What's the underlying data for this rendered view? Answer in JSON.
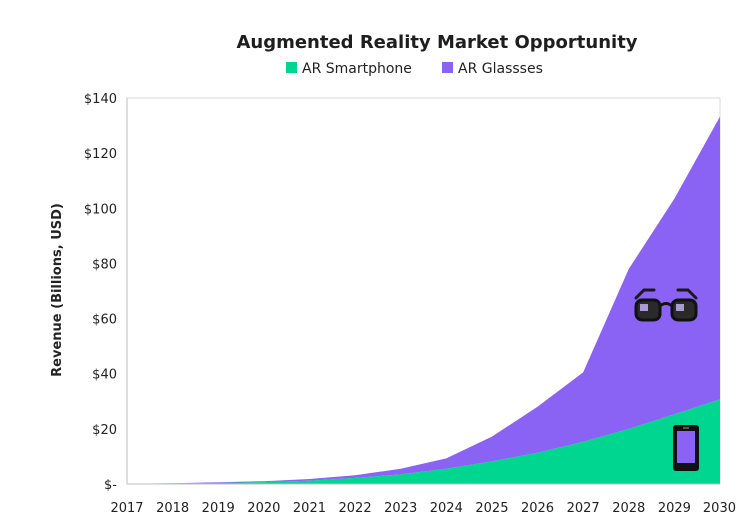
{
  "chart_data": {
    "type": "area",
    "stacked": true,
    "title": "Augmented Reality Market Opportunity",
    "ylabel": "Revenue (Billions, USD)",
    "xlabel": "",
    "x": [
      "2017",
      "2018",
      "2019",
      "2020",
      "2021",
      "2022",
      "2023",
      "2024",
      "2025",
      "2026",
      "2027",
      "2028",
      "2029",
      "2030"
    ],
    "ylim": [
      0,
      140
    ],
    "yticks": [
      0,
      20,
      40,
      60,
      80,
      100,
      120,
      140
    ],
    "ytick_labels": [
      "$-",
      "$20",
      "$40",
      "$60",
      "$80",
      "$100",
      "$120",
      "$140"
    ],
    "legend_position": "top",
    "series": [
      {
        "name": "AR Smartphone",
        "color": "#00D68F",
        "values": [
          0.1,
          0.2,
          0.4,
          0.7,
          1.2,
          2.2,
          3.5,
          5.5,
          8.2,
          11.3,
          15.3,
          20.0,
          25.3,
          30.7
        ]
      },
      {
        "name": "AR Glassses",
        "color": "#8A63F5",
        "values": [
          0,
          0.1,
          0.2,
          0.3,
          0.6,
          1.0,
          2.0,
          3.8,
          9.0,
          16.7,
          25.2,
          58.0,
          78.2,
          102.6
        ]
      }
    ],
    "grid": false,
    "icons": [
      "glasses-icon",
      "smartphone-icon"
    ]
  }
}
